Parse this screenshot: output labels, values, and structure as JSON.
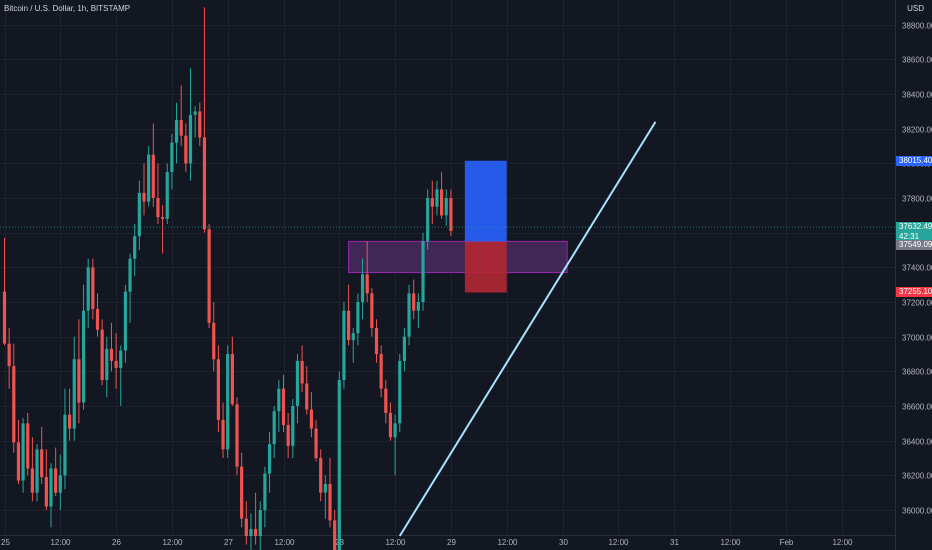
{
  "header": {
    "symbol": "Bitcoin / U.S. Dollar, 1h, BITSTAMP",
    "currency": "USD"
  },
  "chart_data": {
    "type": "candlestick",
    "price_axis": {
      "ticks": [
        36000,
        36200,
        36400,
        36600,
        36800,
        37000,
        37200,
        37400,
        37600,
        37800,
        38000,
        38200,
        38400,
        38600,
        38800
      ],
      "labels": [
        "36000.00",
        "36200.00",
        "36400.00",
        "36600.00",
        "36800.00",
        "37000.00",
        "37200.00",
        "37400.00",
        "37600.00",
        "37800.00",
        "38000.00",
        "38200.00",
        "38400.00",
        "38600.00",
        "38800.00"
      ]
    },
    "time_axis": {
      "labels": [
        "25",
        "12:00",
        "26",
        "12:00",
        "27",
        "12:00",
        "28",
        "12:00",
        "29",
        "12:00",
        "30",
        "12:00",
        "31",
        "12:00",
        "Feb",
        "12:00"
      ]
    },
    "price_tags": {
      "target": "38015.40",
      "current": "37632.49",
      "countdown": "42:31",
      "entry": "37549.09",
      "stop": "37255.10"
    },
    "candles_start_hour": 6,
    "candles": [
      [
        37260,
        37570,
        36950,
        36960
      ],
      [
        36960,
        37050,
        36700,
        36830
      ],
      [
        36830,
        36960,
        36330,
        36390
      ],
      [
        36390,
        36520,
        36150,
        36170
      ],
      [
        36170,
        36530,
        36100,
        36500
      ],
      [
        36500,
        36560,
        36200,
        36240
      ],
      [
        36240,
        36420,
        36050,
        36100
      ],
      [
        36100,
        36380,
        36050,
        36350
      ],
      [
        36350,
        36480,
        36150,
        36190
      ],
      [
        36190,
        36350,
        36000,
        36020
      ],
      [
        36020,
        36270,
        35900,
        36240
      ],
      [
        36240,
        36360,
        36080,
        36100
      ],
      [
        36100,
        36320,
        36000,
        36200
      ],
      [
        36200,
        36700,
        36120,
        36550
      ],
      [
        36550,
        36700,
        36400,
        36470
      ],
      [
        36470,
        37000,
        36400,
        36870
      ],
      [
        36870,
        37100,
        36500,
        36620
      ],
      [
        36620,
        37300,
        36580,
        37150
      ],
      [
        37150,
        37450,
        37050,
        37400
      ],
      [
        37400,
        37450,
        37100,
        37160
      ],
      [
        37160,
        37250,
        37000,
        37040
      ],
      [
        37040,
        37100,
        36720,
        36750
      ],
      [
        36750,
        37000,
        36650,
        36930
      ],
      [
        36930,
        37080,
        36800,
        36860
      ],
      [
        36860,
        37020,
        36700,
        36820
      ],
      [
        36820,
        36950,
        36600,
        36920
      ],
      [
        36920,
        37300,
        36850,
        37260
      ],
      [
        37260,
        37480,
        37080,
        37450
      ],
      [
        37450,
        37650,
        37350,
        37580
      ],
      [
        37580,
        37900,
        37500,
        37830
      ],
      [
        37830,
        38000,
        37700,
        37780
      ],
      [
        37780,
        38100,
        37750,
        38050
      ],
      [
        38050,
        38230,
        37750,
        37800
      ],
      [
        37800,
        38000,
        37650,
        37690
      ],
      [
        37690,
        37760,
        37480,
        37680
      ],
      [
        37680,
        38000,
        37650,
        37950
      ],
      [
        37950,
        38170,
        37850,
        38120
      ],
      [
        38120,
        38350,
        38000,
        38250
      ],
      [
        38250,
        38450,
        38100,
        38160
      ],
      [
        38160,
        38230,
        37950,
        38000
      ],
      [
        38000,
        38550,
        37900,
        38280
      ],
      [
        38280,
        38330,
        38150,
        38300
      ],
      [
        38300,
        38350,
        38100,
        38150
      ],
      [
        38150,
        38900,
        37600,
        37620
      ],
      [
        37620,
        37650,
        37050,
        37080
      ],
      [
        37080,
        37200,
        36800,
        36870
      ],
      [
        36870,
        36950,
        36450,
        36520
      ],
      [
        36520,
        36620,
        36300,
        36350
      ],
      [
        36350,
        36950,
        36300,
        36900
      ],
      [
        36900,
        37000,
        36600,
        36610
      ],
      [
        36610,
        36650,
        36200,
        36250
      ],
      [
        36250,
        36330,
        35900,
        35950
      ],
      [
        35950,
        36050,
        35800,
        35850
      ],
      [
        35850,
        35980,
        35750,
        35890
      ],
      [
        35890,
        36100,
        35800,
        35850
      ],
      [
        35850,
        36050,
        35750,
        36000
      ],
      [
        36000,
        36250,
        35900,
        36210
      ],
      [
        36210,
        36450,
        36100,
        36380
      ],
      [
        36380,
        36600,
        36300,
        36570
      ],
      [
        36570,
        36750,
        36450,
        36700
      ],
      [
        36700,
        36780,
        36450,
        36490
      ],
      [
        36490,
        36560,
        36300,
        36370
      ],
      [
        36370,
        36640,
        36300,
        36600
      ],
      [
        36600,
        36900,
        36500,
        36860
      ],
      [
        36860,
        36950,
        36680,
        36730
      ],
      [
        36730,
        36830,
        36550,
        36580
      ],
      [
        36580,
        36680,
        36420,
        36470
      ],
      [
        36470,
        36520,
        36280,
        36300
      ],
      [
        36300,
        36350,
        36050,
        36100
      ],
      [
        36100,
        36200,
        35950,
        36150
      ],
      [
        36150,
        36300,
        35900,
        35940
      ],
      [
        35940,
        36000,
        35700,
        35750
      ],
      [
        35750,
        36800,
        35700,
        36750
      ],
      [
        36750,
        37200,
        36700,
        37150
      ],
      [
        37150,
        37300,
        36950,
        36980
      ],
      [
        36980,
        37050,
        36850,
        37020
      ],
      [
        37020,
        37250,
        36950,
        37200
      ],
      [
        37200,
        37450,
        37100,
        37360
      ],
      [
        37360,
        37550,
        37200,
        37250
      ],
      [
        37250,
        37280,
        37000,
        37050
      ],
      [
        37050,
        37100,
        36850,
        36900
      ],
      [
        36900,
        36950,
        36650,
        36700
      ],
      [
        36700,
        36750,
        36500,
        36560
      ],
      [
        36560,
        36620,
        36400,
        36420
      ],
      [
        36420,
        36550,
        36200,
        36500
      ],
      [
        36500,
        36900,
        36450,
        36860
      ],
      [
        36860,
        37050,
        36800,
        37000
      ],
      [
        37000,
        37300,
        36950,
        37250
      ],
      [
        37250,
        37330,
        37100,
        37150
      ],
      [
        37150,
        37250,
        37050,
        37200
      ],
      [
        37200,
        37600,
        37150,
        37550
      ],
      [
        37550,
        37850,
        37500,
        37800
      ],
      [
        37800,
        37900,
        37650,
        37750
      ],
      [
        37750,
        37900,
        37700,
        37850
      ],
      [
        37850,
        37950,
        37680,
        37700
      ],
      [
        37700,
        37850,
        37640,
        37800
      ],
      [
        37800,
        37850,
        37580,
        37610
      ]
    ],
    "annotations": {
      "resistance_box": {
        "from_index": 74,
        "to_index": 121,
        "top": 37550,
        "bottom": 37370
      },
      "long_position": {
        "from_index": 99,
        "to_index": 108,
        "target": 38015.4,
        "entry": 37549.09,
        "stop": 37255.1
      },
      "trendline": {
        "from_index": 85,
        "from_price": 35850,
        "to_index": 140,
        "to_price": 38240
      }
    }
  },
  "colors": {
    "background": "#131722",
    "grid": "#1e222d",
    "up": "#26a69a",
    "down": "#ef5350",
    "target_zone": "#2962ff",
    "stop_zone": "#b22833",
    "resistance_fill": "#4a2a5e",
    "resistance_border": "#9c27b0",
    "trendline": "#a5e3ff",
    "target_tag": "#2962ff",
    "current_tag": "#26a69a",
    "entry_tag": "#787b86",
    "stop_tag": "#f23645"
  }
}
